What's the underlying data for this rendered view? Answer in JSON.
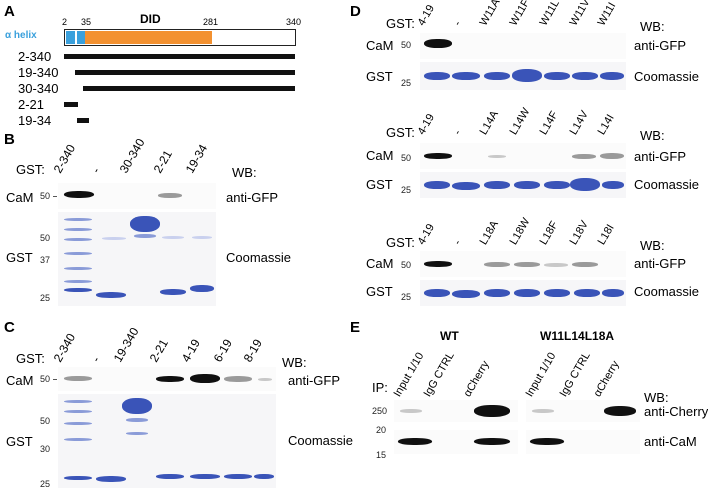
{
  "panel_letters": {
    "a": "A",
    "b": "B",
    "c": "C",
    "d": "D",
    "e": "E"
  },
  "panel_a": {
    "helix_label": "α helix",
    "did_label": "DID",
    "pos_2": "2",
    "pos_35": "35",
    "pos_281": "281",
    "pos_340": "340",
    "constructs": [
      "2-340",
      "19-340",
      "30-340",
      "2-21",
      "19-34"
    ],
    "colors": {
      "helix": "#3aa0dc",
      "did": "#f39130",
      "bar": "#111111"
    }
  },
  "panel_b": {
    "gst_label": "GST:",
    "lanes": [
      "2-340",
      "-",
      "30-340",
      "2-21",
      "19-34"
    ],
    "wb_label": "WB:",
    "cam_label": "CaM",
    "gst_row_label": "GST",
    "anti_gfp": "anti-GFP",
    "coomassie": "Coomassie",
    "mw_top": "50",
    "mw_gel": [
      "50",
      "37",
      "25"
    ]
  },
  "panel_c": {
    "gst_label": "GST:",
    "lanes": [
      "2-340",
      "-",
      "19-340",
      "2-21",
      "4-19",
      "6-19",
      "8-19"
    ],
    "wb_label": "WB:",
    "cam_label": "CaM",
    "gst_row_label": "GST",
    "anti_gfp": "anti-GFP",
    "coomassie": "Coomassie",
    "mw_top": "50",
    "mw_gel": [
      "50",
      "30",
      "25"
    ]
  },
  "panel_d": {
    "blocks": [
      {
        "gst_label": "GST:",
        "lanes": [
          "4-19",
          "-",
          "W11A",
          "W11F",
          "W11L",
          "W11V",
          "W11I"
        ],
        "wb_label": "WB:",
        "cam_label": "CaM",
        "gst_row_label": "GST",
        "anti_gfp": "anti-GFP",
        "coomassie": "Coomassie",
        "mw_top": "50",
        "mw_bottom": "25"
      },
      {
        "gst_label": "GST:",
        "lanes": [
          "4-19",
          "-",
          "L14A",
          "L14W",
          "L14F",
          "L14V",
          "L14I"
        ],
        "wb_label": "WB:",
        "cam_label": "CaM",
        "gst_row_label": "GST",
        "anti_gfp": "anti-GFP",
        "coomassie": "Coomassie",
        "mw_top": "50",
        "mw_bottom": "25"
      },
      {
        "gst_label": "GST:",
        "lanes": [
          "4-19",
          "-",
          "L18A",
          "L18W",
          "L18F",
          "L18V",
          "L18I"
        ],
        "wb_label": "WB:",
        "cam_label": "CaM",
        "gst_row_label": "GST",
        "anti_gfp": "anti-GFP",
        "coomassie": "Coomassie",
        "mw_top": "50",
        "mw_bottom": "25"
      }
    ]
  },
  "panel_e": {
    "wt_label": "WT",
    "mut_label": "W11L14L18A",
    "ip_label": "IP:",
    "lanes_left": [
      "Input 1/10",
      "IgG CTRL",
      "αCherry"
    ],
    "lanes_right": [
      "Input 1/10",
      "IgG CTRL",
      "αCherry"
    ],
    "wb_label": "WB:",
    "anti_cherry": "anti-Cherry",
    "anti_cam": "anti-CaM",
    "mw": [
      "250",
      "20",
      "15"
    ]
  }
}
